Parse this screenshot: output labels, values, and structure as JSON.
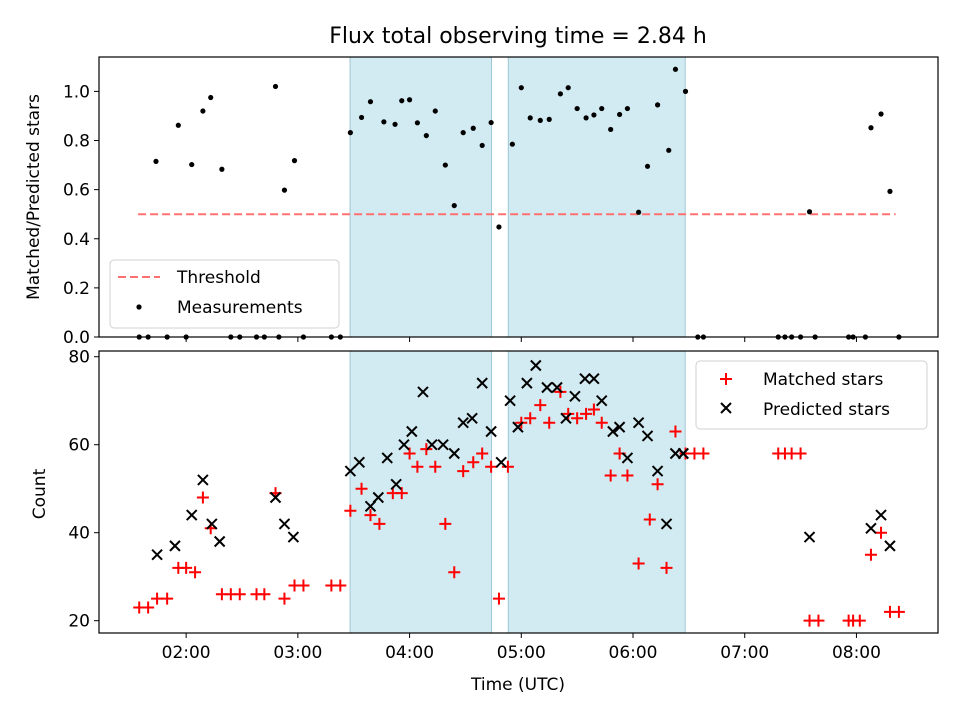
{
  "chart_data": {
    "type": "scatter",
    "title": "Flux total observing time = 2.84 h",
    "shared_x": {
      "label": "Time (UTC)",
      "unit": "hours UTC",
      "range": [
        1.22,
        8.73
      ],
      "tick_values": [
        2,
        3,
        4,
        5,
        6,
        7,
        8
      ],
      "tick_labels": [
        "02:00",
        "03:00",
        "04:00",
        "05:00",
        "06:00",
        "07:00",
        "08:00"
      ]
    },
    "observing_windows": {
      "color": "#add8e6",
      "spans": [
        [
          3.467,
          4.733
        ],
        [
          4.883,
          6.467
        ]
      ]
    },
    "panels": [
      {
        "type": "scatter",
        "ylabel": "Matched/Predicted stars",
        "ylim": [
          0.0,
          1.14
        ],
        "y_ticks": [
          0.0,
          0.2,
          0.4,
          0.6,
          0.8,
          1.0
        ],
        "y_tick_labels": [
          "0.0",
          "0.2",
          "0.4",
          "0.6",
          "0.8",
          "1.0"
        ],
        "legend": {
          "placement": "lower-left",
          "entries": [
            "Threshold",
            "Measurements"
          ]
        },
        "threshold": {
          "name": "Threshold",
          "value": 0.5,
          "x_range": [
            1.57,
            8.35
          ],
          "color": "#ff7070",
          "style": "dashed"
        },
        "series": [
          {
            "name": "Measurements",
            "marker": "dot",
            "color": "#000000",
            "points": [
              [
                1.58,
                0
              ],
              [
                1.66,
                0
              ],
              [
                1.83,
                0
              ],
              [
                2.0,
                0
              ],
              [
                1.73,
                0.715
              ],
              [
                1.93,
                0.862
              ],
              [
                2.05,
                0.702
              ],
              [
                2.15,
                0.92
              ],
              [
                2.22,
                0.975
              ],
              [
                2.32,
                0.683
              ],
              [
                2.4,
                0
              ],
              [
                2.48,
                0
              ],
              [
                2.63,
                0
              ],
              [
                2.7,
                0
              ],
              [
                2.8,
                1.02
              ],
              [
                2.88,
                0.598
              ],
              [
                2.97,
                0.718
              ],
              [
                2.83,
                0
              ],
              [
                3.05,
                0
              ],
              [
                3.3,
                0
              ],
              [
                3.38,
                0
              ],
              [
                3.47,
                0.832
              ],
              [
                3.57,
                0.894
              ],
              [
                3.65,
                0.958
              ],
              [
                3.77,
                0.876
              ],
              [
                3.87,
                0.866
              ],
              [
                3.93,
                0.962
              ],
              [
                4.0,
                0.966
              ],
              [
                4.07,
                0.872
              ],
              [
                4.15,
                0.82
              ],
              [
                4.23,
                0.92
              ],
              [
                4.32,
                0.7
              ],
              [
                4.4,
                0.535
              ],
              [
                4.48,
                0.832
              ],
              [
                4.57,
                0.85
              ],
              [
                4.65,
                0.78
              ],
              [
                4.73,
                0.873
              ],
              [
                4.8,
                0.448
              ],
              [
                4.92,
                0.785
              ],
              [
                5.0,
                1.015
              ],
              [
                5.08,
                0.892
              ],
              [
                5.17,
                0.882
              ],
              [
                5.25,
                0.886
              ],
              [
                5.35,
                0.99
              ],
              [
                5.42,
                1.015
              ],
              [
                5.5,
                0.93
              ],
              [
                5.58,
                0.892
              ],
              [
                5.65,
                0.904
              ],
              [
                5.72,
                0.93
              ],
              [
                5.8,
                0.845
              ],
              [
                5.88,
                0.906
              ],
              [
                5.95,
                0.93
              ],
              [
                6.05,
                0.508
              ],
              [
                6.13,
                0.695
              ],
              [
                6.22,
                0.945
              ],
              [
                6.32,
                0.76
              ],
              [
                6.38,
                1.09
              ],
              [
                6.47,
                1.0
              ],
              [
                6.58,
                0
              ],
              [
                6.63,
                0
              ],
              [
                7.3,
                0
              ],
              [
                7.36,
                0
              ],
              [
                7.42,
                0
              ],
              [
                7.5,
                0
              ],
              [
                7.63,
                0
              ],
              [
                7.58,
                0.51
              ],
              [
                7.93,
                0
              ],
              [
                7.97,
                0
              ],
              [
                8.08,
                0
              ],
              [
                8.13,
                0.852
              ],
              [
                8.22,
                0.908
              ],
              [
                8.3,
                0.593
              ],
              [
                8.38,
                0
              ]
            ]
          }
        ]
      },
      {
        "type": "scatter",
        "ylabel": "Count",
        "ylim": [
          17.2,
          81.3
        ],
        "y_ticks": [
          20,
          40,
          60,
          80
        ],
        "y_tick_labels": [
          "20",
          "40",
          "60",
          "80"
        ],
        "legend": {
          "placement": "upper-right",
          "entries": [
            "Matched stars",
            "Predicted stars"
          ]
        },
        "series": [
          {
            "name": "Matched stars",
            "marker": "plus",
            "color": "#ff0000",
            "points": [
              [
                1.58,
                23
              ],
              [
                1.66,
                23
              ],
              [
                1.74,
                25
              ],
              [
                1.83,
                25
              ],
              [
                1.93,
                32
              ],
              [
                2.0,
                32
              ],
              [
                2.08,
                31
              ],
              [
                2.15,
                48
              ],
              [
                2.22,
                41
              ],
              [
                2.32,
                26
              ],
              [
                2.4,
                26
              ],
              [
                2.48,
                26
              ],
              [
                2.63,
                26
              ],
              [
                2.7,
                26
              ],
              [
                2.8,
                49
              ],
              [
                2.88,
                25
              ],
              [
                2.97,
                28
              ],
              [
                3.05,
                28
              ],
              [
                3.3,
                28
              ],
              [
                3.38,
                28
              ],
              [
                3.47,
                45
              ],
              [
                3.57,
                50
              ],
              [
                3.65,
                44
              ],
              [
                3.73,
                42
              ],
              [
                3.85,
                49
              ],
              [
                3.93,
                49
              ],
              [
                4.0,
                58
              ],
              [
                4.07,
                55
              ],
              [
                4.15,
                59
              ],
              [
                4.23,
                55
              ],
              [
                4.32,
                42
              ],
              [
                4.4,
                31
              ],
              [
                4.48,
                54
              ],
              [
                4.57,
                56
              ],
              [
                4.65,
                58
              ],
              [
                4.73,
                55
              ],
              [
                4.8,
                25
              ],
              [
                4.88,
                55
              ],
              [
                5.0,
                65
              ],
              [
                5.08,
                66
              ],
              [
                5.17,
                69
              ],
              [
                5.25,
                65
              ],
              [
                5.35,
                72
              ],
              [
                5.42,
                67
              ],
              [
                5.5,
                66
              ],
              [
                5.58,
                67
              ],
              [
                5.65,
                68
              ],
              [
                5.72,
                65
              ],
              [
                5.8,
                53
              ],
              [
                5.88,
                58
              ],
              [
                5.95,
                53
              ],
              [
                6.05,
                33
              ],
              [
                6.15,
                43
              ],
              [
                6.22,
                51
              ],
              [
                6.3,
                32
              ],
              [
                6.38,
                63
              ],
              [
                6.47,
                58
              ],
              [
                6.55,
                58
              ],
              [
                6.63,
                58
              ],
              [
                7.3,
                58
              ],
              [
                7.36,
                58
              ],
              [
                7.42,
                58
              ],
              [
                7.5,
                58
              ],
              [
                7.58,
                20
              ],
              [
                7.66,
                20
              ],
              [
                7.93,
                20
              ],
              [
                7.97,
                20
              ],
              [
                8.03,
                20
              ],
              [
                8.13,
                35
              ],
              [
                8.22,
                40
              ],
              [
                8.3,
                22
              ],
              [
                8.38,
                22
              ]
            ]
          },
          {
            "name": "Predicted stars",
            "marker": "x",
            "color": "#000000",
            "points": [
              [
                1.74,
                35
              ],
              [
                1.9,
                37
              ],
              [
                2.05,
                44
              ],
              [
                2.15,
                52
              ],
              [
                2.23,
                42
              ],
              [
                2.3,
                38
              ],
              [
                2.8,
                48
              ],
              [
                2.88,
                42
              ],
              [
                2.96,
                39
              ],
              [
                3.47,
                54
              ],
              [
                3.55,
                56
              ],
              [
                3.65,
                46
              ],
              [
                3.72,
                48
              ],
              [
                3.8,
                57
              ],
              [
                3.88,
                51
              ],
              [
                3.95,
                60
              ],
              [
                4.02,
                63
              ],
              [
                4.12,
                72
              ],
              [
                4.2,
                60
              ],
              [
                4.3,
                60
              ],
              [
                4.4,
                58
              ],
              [
                4.48,
                65
              ],
              [
                4.56,
                66
              ],
              [
                4.65,
                74
              ],
              [
                4.73,
                63
              ],
              [
                4.82,
                56
              ],
              [
                4.9,
                70
              ],
              [
                4.97,
                64
              ],
              [
                5.05,
                74
              ],
              [
                5.13,
                78
              ],
              [
                5.23,
                73
              ],
              [
                5.32,
                73
              ],
              [
                5.4,
                66
              ],
              [
                5.48,
                71
              ],
              [
                5.57,
                75
              ],
              [
                5.65,
                75
              ],
              [
                5.72,
                70
              ],
              [
                5.82,
                63
              ],
              [
                5.88,
                64
              ],
              [
                5.95,
                57
              ],
              [
                6.05,
                65
              ],
              [
                6.13,
                62
              ],
              [
                6.22,
                54
              ],
              [
                6.3,
                42
              ],
              [
                6.38,
                58
              ],
              [
                6.45,
                58
              ],
              [
                7.58,
                39
              ],
              [
                8.13,
                41
              ],
              [
                8.22,
                44
              ],
              [
                8.3,
                37
              ]
            ]
          }
        ]
      }
    ]
  }
}
